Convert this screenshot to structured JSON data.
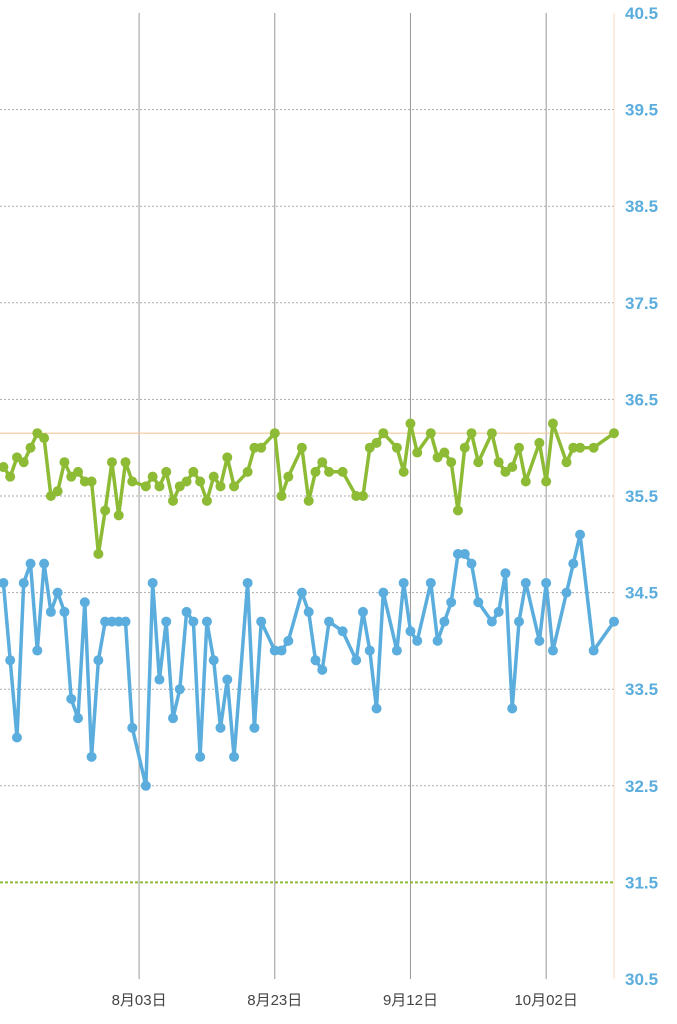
{
  "chart_data": {
    "type": "line",
    "title": "",
    "xlabel": "",
    "ylabel": "",
    "x_unit": "day index (day 21 = 8月03日)",
    "xlim": [
      0.5,
      91
    ],
    "ylim": [
      30.5,
      40.5
    ],
    "y_ticks": [
      "30.5",
      "31.5",
      "32.5",
      "33.5",
      "34.5",
      "35.5",
      "36.5",
      "37.5",
      "38.5",
      "39.5",
      "40.5"
    ],
    "x_ticks": [
      {
        "day": 21,
        "label": "8月03日"
      },
      {
        "day": 41,
        "label": "8月23日"
      },
      {
        "day": 61,
        "label": "9月12日"
      },
      {
        "day": 81,
        "label": "10月02日"
      }
    ],
    "reference_lines": [
      {
        "value": 36.15,
        "color": "#f3c89a",
        "style": "solid"
      },
      {
        "value": 31.5,
        "color": "#8dbb35",
        "style": "dashed"
      }
    ],
    "grid": true,
    "series": [
      {
        "name": "green",
        "color": "#8dbb35",
        "x": [
          1,
          2,
          3,
          4,
          5,
          6,
          7,
          8,
          9,
          10,
          11,
          12,
          13,
          14,
          15,
          16,
          17,
          18,
          19,
          20,
          22,
          23,
          24,
          25,
          26,
          27,
          28,
          29,
          30,
          31,
          32,
          33,
          34,
          35,
          37,
          38,
          39,
          41,
          42,
          43,
          45,
          46,
          47,
          48,
          49,
          51,
          53,
          54,
          55,
          56,
          57,
          59,
          60,
          61,
          62,
          64,
          65,
          66,
          67,
          68,
          69,
          70,
          71,
          73,
          74,
          75,
          76,
          77,
          78,
          80,
          81,
          82,
          84,
          85,
          86,
          88,
          91
        ],
        "y": [
          35.8,
          35.7,
          35.9,
          35.85,
          36.0,
          36.15,
          36.1,
          35.5,
          35.55,
          35.85,
          35.7,
          35.75,
          35.65,
          35.65,
          34.9,
          35.35,
          35.85,
          35.3,
          35.85,
          35.65,
          35.6,
          35.7,
          35.6,
          35.75,
          35.45,
          35.6,
          35.65,
          35.75,
          35.65,
          35.45,
          35.7,
          35.6,
          35.9,
          35.6,
          35.75,
          36.0,
          36.0,
          36.15,
          35.5,
          35.7,
          36.0,
          35.45,
          35.75,
          35.85,
          35.75,
          35.75,
          35.5,
          35.5,
          36.0,
          36.05,
          36.15,
          36.0,
          35.75,
          36.25,
          35.95,
          36.15,
          35.9,
          35.95,
          35.85,
          35.35,
          36.0,
          36.15,
          35.85,
          36.15,
          35.85,
          35.75,
          35.8,
          36.0,
          35.65,
          36.05,
          35.65,
          36.25,
          35.85,
          36.0,
          36.0,
          36.0,
          36.15
        ]
      },
      {
        "name": "blue",
        "color": "#5aaddc",
        "x": [
          1,
          2,
          3,
          4,
          5,
          6,
          7,
          8,
          9,
          10,
          11,
          12,
          13,
          14,
          15,
          16,
          17,
          18,
          19,
          20,
          22,
          23,
          24,
          25,
          26,
          27,
          28,
          29,
          30,
          31,
          32,
          33,
          34,
          35,
          37,
          38,
          39,
          41,
          42,
          43,
          45,
          46,
          47,
          48,
          49,
          51,
          53,
          54,
          55,
          56,
          57,
          59,
          60,
          61,
          62,
          64,
          65,
          66,
          67,
          68,
          69,
          70,
          71,
          73,
          74,
          75,
          76,
          77,
          78,
          80,
          81,
          82,
          84,
          85,
          86,
          88,
          91
        ],
        "y": [
          34.6,
          33.8,
          33.0,
          34.6,
          34.8,
          33.9,
          34.8,
          34.3,
          34.5,
          34.3,
          33.4,
          33.2,
          34.4,
          32.8,
          33.8,
          34.2,
          34.2,
          34.2,
          34.2,
          33.1,
          32.5,
          34.6,
          33.6,
          34.2,
          33.2,
          33.5,
          34.3,
          34.2,
          32.8,
          34.2,
          33.8,
          33.1,
          33.6,
          32.8,
          34.6,
          33.1,
          34.2,
          33.9,
          33.9,
          34.0,
          34.5,
          34.3,
          33.8,
          33.7,
          34.2,
          34.1,
          33.8,
          34.3,
          33.9,
          33.3,
          34.5,
          33.9,
          34.6,
          34.1,
          34.0,
          34.6,
          34.0,
          34.2,
          34.4,
          34.9,
          34.9,
          34.8,
          34.4,
          34.2,
          34.3,
          34.7,
          33.3,
          34.2,
          34.6,
          34.0,
          34.6,
          33.9,
          34.5,
          34.8,
          35.1,
          33.9,
          34.2
        ]
      }
    ]
  }
}
